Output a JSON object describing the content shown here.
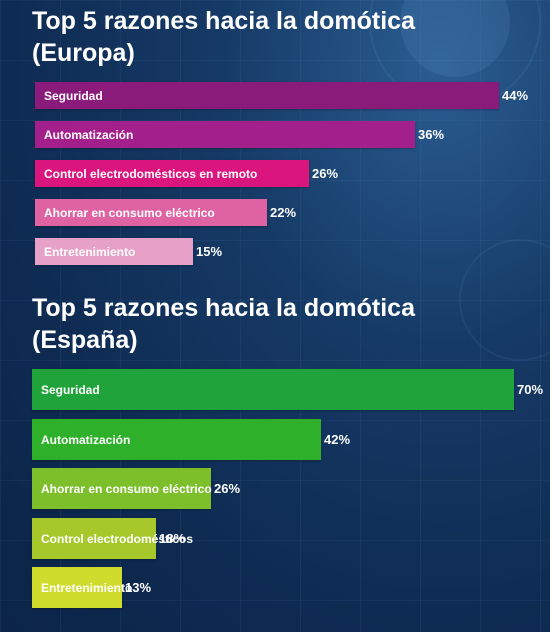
{
  "chart_data": [
    {
      "type": "bar",
      "orientation": "horizontal",
      "title": "Top 5 razones hacia la domótica (Europa)",
      "title_lines": [
        "Top 5 razones hacia la domótica",
        "(Europa)"
      ],
      "categories": [
        "Seguridad",
        "Automatización",
        "Control electrodomésticos en remoto",
        "Ahorrar en consumo eléctrico",
        "Entretenimiento"
      ],
      "values": [
        44,
        36,
        26,
        22,
        15
      ],
      "value_labels": [
        "44%",
        "36%",
        "26%",
        "22%",
        "15%"
      ],
      "colors": [
        "#8a1b7a",
        "#a3208c",
        "#db157e",
        "#df62a3",
        "#e7a0c8"
      ],
      "unit": "%",
      "xlim": [
        0,
        44
      ]
    },
    {
      "type": "bar",
      "orientation": "horizontal",
      "title": "Top 5 razones hacia la domótica (España)",
      "title_lines": [
        "Top 5 razones hacia la domótica",
        "(España)"
      ],
      "categories": [
        "Seguridad",
        "Automatización",
        "Ahorrar en consumo eléctrico",
        "Control electrodomésticos",
        "Entretenimiento"
      ],
      "values": [
        70,
        42,
        26,
        18,
        13
      ],
      "value_labels": [
        "70%",
        "42%",
        "26%",
        "18%",
        "13%"
      ],
      "colors": [
        "#1fa33a",
        "#2eb02a",
        "#7cbf2b",
        "#a6c82a",
        "#cfdc2c"
      ],
      "unit": "%",
      "xlim": [
        0,
        70
      ]
    }
  ]
}
